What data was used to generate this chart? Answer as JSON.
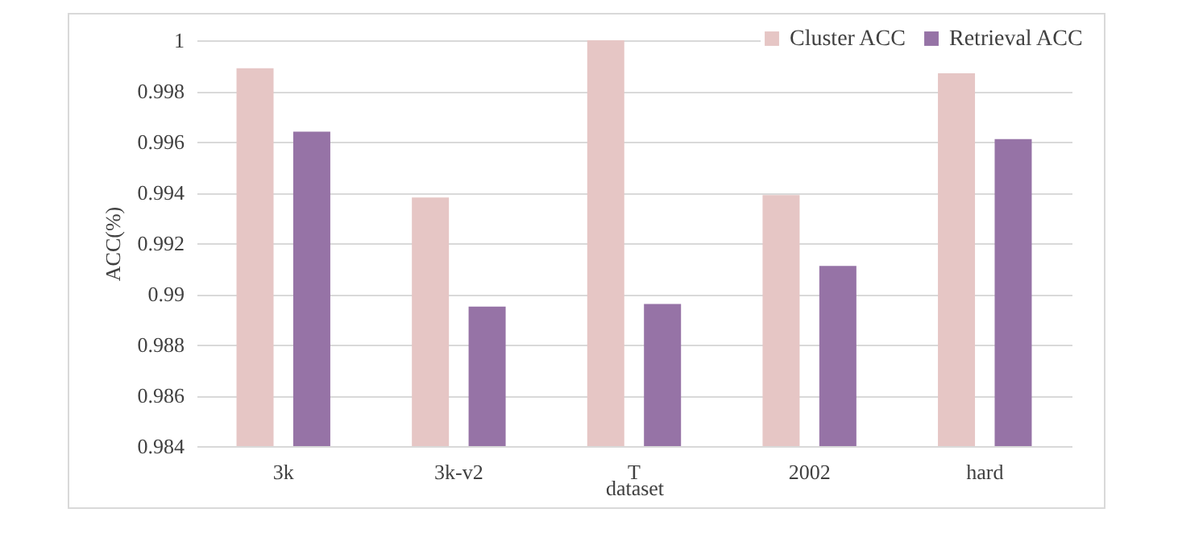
{
  "chart_data": {
    "type": "bar",
    "xlabel": "dataset",
    "ylabel": "ACC(%)",
    "categories": [
      "3k",
      "3k-v2",
      "T",
      "2002",
      "hard"
    ],
    "series": [
      {
        "name": "Cluster ACC",
        "color": "#e6c6c5",
        "values": [
          0.9989,
          0.9938,
          1.0,
          0.9939,
          0.9987
        ]
      },
      {
        "name": "Retrieval ACC",
        "color": "#9673a6",
        "values": [
          0.9964,
          0.9895,
          0.9896,
          0.9911,
          0.9961
        ]
      }
    ],
    "ylim": [
      0.984,
      1
    ],
    "yticks": [
      0.984,
      0.986,
      0.988,
      0.99,
      0.992,
      0.994,
      0.996,
      0.998,
      1
    ],
    "grid": "y",
    "legend": "top right"
  }
}
